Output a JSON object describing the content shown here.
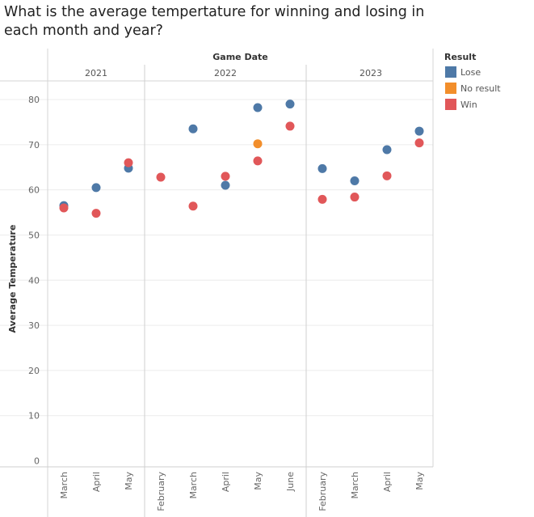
{
  "chart_data": {
    "type": "scatter",
    "title": "What is the average tempertature for winning and losing in each month and year?",
    "column_header": "Game Date",
    "ylabel": "Average Temperature",
    "ylim": [
      0,
      88
    ],
    "yticks": [
      0,
      10,
      20,
      30,
      40,
      50,
      60,
      70,
      80
    ],
    "grid": true,
    "legend": {
      "title": "Result",
      "position": "top-right"
    },
    "years": [
      {
        "year": "2021",
        "months": [
          "March",
          "April",
          "May"
        ]
      },
      {
        "year": "2022",
        "months": [
          "February",
          "March",
          "April",
          "May",
          "June"
        ]
      },
      {
        "year": "2023",
        "months": [
          "February",
          "March",
          "April",
          "May"
        ]
      }
    ],
    "series": [
      {
        "name": "Lose",
        "color": "#4e79a7",
        "points": [
          {
            "year": "2021",
            "month": "March",
            "y": 56.5
          },
          {
            "year": "2021",
            "month": "April",
            "y": 60.5
          },
          {
            "year": "2021",
            "month": "May",
            "y": 64.8
          },
          {
            "year": "2022",
            "month": "March",
            "y": 73.5
          },
          {
            "year": "2022",
            "month": "April",
            "y": 61
          },
          {
            "year": "2022",
            "month": "May",
            "y": 78.2
          },
          {
            "year": "2022",
            "month": "June",
            "y": 79
          },
          {
            "year": "2023",
            "month": "February",
            "y": 64.7
          },
          {
            "year": "2023",
            "month": "March",
            "y": 62
          },
          {
            "year": "2023",
            "month": "April",
            "y": 68.9
          },
          {
            "year": "2023",
            "month": "May",
            "y": 73
          }
        ]
      },
      {
        "name": "No result",
        "color": "#f28e2b",
        "points": [
          {
            "year": "2022",
            "month": "May",
            "y": 70.2
          }
        ]
      },
      {
        "name": "Win",
        "color": "#e15759",
        "points": [
          {
            "year": "2021",
            "month": "March",
            "y": 56
          },
          {
            "year": "2021",
            "month": "April",
            "y": 54.8
          },
          {
            "year": "2021",
            "month": "May",
            "y": 66
          },
          {
            "year": "2022",
            "month": "February",
            "y": 62.8
          },
          {
            "year": "2022",
            "month": "March",
            "y": 56.4
          },
          {
            "year": "2022",
            "month": "April",
            "y": 63
          },
          {
            "year": "2022",
            "month": "May",
            "y": 66.4
          },
          {
            "year": "2022",
            "month": "June",
            "y": 74.1
          },
          {
            "year": "2023",
            "month": "February",
            "y": 57.9
          },
          {
            "year": "2023",
            "month": "March",
            "y": 58.4
          },
          {
            "year": "2023",
            "month": "April",
            "y": 63.1
          },
          {
            "year": "2023",
            "month": "May",
            "y": 70.4
          }
        ]
      }
    ]
  }
}
